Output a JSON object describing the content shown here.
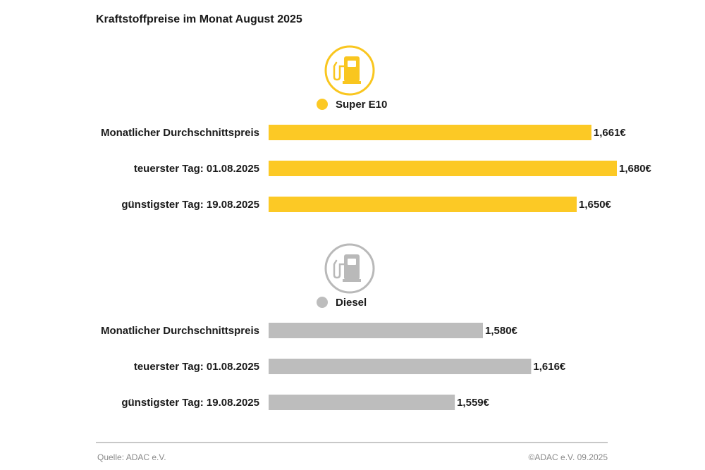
{
  "title": "Kraftstoffpreise im Monat August 2025",
  "chart_data": {
    "type": "bar",
    "orientation": "horizontal",
    "title": "Kraftstoffpreise im Monat August 2025",
    "categories": [
      "Monatlicher Durchschnittspreis",
      "teuerster Tag: 01.08.2025",
      "günstigster Tag: 19.08.2025"
    ],
    "series": [
      {
        "name": "Super E10",
        "color": "#fcc925",
        "icon_color": "#f9c61f",
        "icon": "fuel-pump-icon",
        "values": [
          1.661,
          1.68,
          1.65
        ],
        "labels": [
          "1,661€",
          "1,680€",
          "1,650€"
        ]
      },
      {
        "name": "Diesel",
        "color": "#bdbdbd",
        "icon_color": "#b9b9b9",
        "icon": "fuel-pump-icon",
        "values": [
          1.58,
          1.616,
          1.559
        ],
        "labels": [
          "1,580€",
          "1,616€",
          "1,559€"
        ]
      }
    ]
  },
  "footer": {
    "source": "Quelle: ADAC e.V.",
    "copyright": "©ADAC e.V. 09.2025"
  }
}
